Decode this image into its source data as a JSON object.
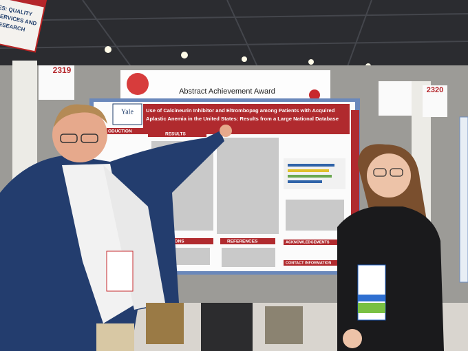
{
  "header": {
    "award": "Abstract Achievement Award"
  },
  "booths": {
    "left": "2319",
    "right": "2320"
  },
  "sign": [
    "ES: QUALITY",
    "SERVICES AND",
    "RESEARCH"
  ],
  "poster": {
    "logo": "Yale",
    "title": [
      "Use of Calcineurin Inhibitor and Eltrombopag among Patients with Acquired",
      "Aplastic Anemia in the United States: Results from a Large National Database"
    ],
    "sections": [
      "ODUCTION",
      "RESULTS",
      "CLUSIONS",
      "REFERENCES",
      "ACKNOWLEDGEMENTS",
      "CONTACT INFORMATION"
    ]
  }
}
